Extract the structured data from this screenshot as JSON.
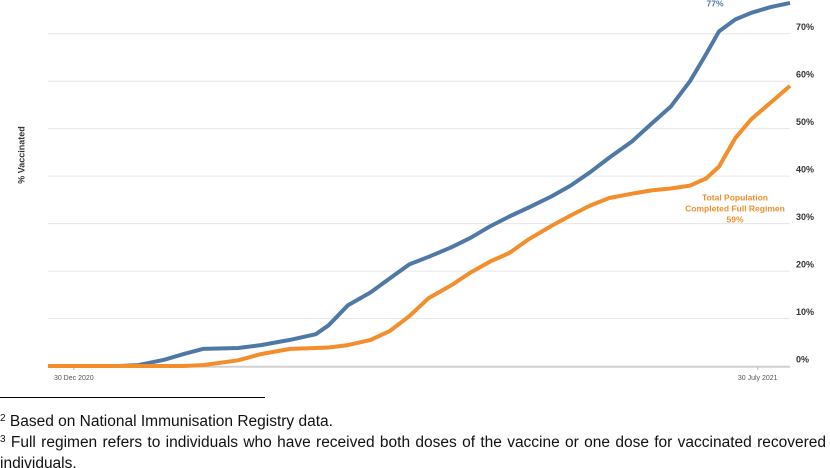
{
  "chart_data": {
    "type": "line",
    "y_label": "% Vaccinated",
    "x": [
      -8,
      14,
      20,
      28,
      34,
      40,
      51,
      58,
      67,
      75,
      79,
      85,
      92,
      98,
      104,
      110,
      117,
      123,
      129,
      135,
      141,
      148,
      154,
      160,
      166,
      173,
      179,
      185,
      191,
      196,
      200,
      205,
      210,
      216,
      222
    ],
    "xlim": [
      -8,
      222
    ],
    "xticks": [
      {
        "value": 0,
        "label": "30 Dec 2020"
      },
      {
        "value": 212,
        "label": "30 July 2021"
      }
    ],
    "ylim": [
      0,
      77
    ],
    "yticks": [
      {
        "value": 0,
        "label": "0%"
      },
      {
        "value": 10,
        "label": "10%"
      },
      {
        "value": 20,
        "label": "20%"
      },
      {
        "value": 30,
        "label": "30%"
      },
      {
        "value": 40,
        "label": "40%"
      },
      {
        "value": 50,
        "label": "50%"
      },
      {
        "value": 60,
        "label": "60%"
      },
      {
        "value": 70,
        "label": "70%"
      }
    ],
    "grid": true,
    "series": [
      {
        "color": "#4e79a7",
        "values": [
          0,
          0,
          0.2,
          1.3,
          2.5,
          3.6,
          3.8,
          4.4,
          5.5,
          6.7,
          8.6,
          12.8,
          15.5,
          18.5,
          21.4,
          23,
          25,
          27,
          29.4,
          31.5,
          33.4,
          35.7,
          38,
          40.8,
          43.9,
          47.3,
          51,
          54.6,
          60,
          65.7,
          70.5,
          73,
          74.4,
          75.6,
          76.5
        ]
      },
      {
        "color": "#f28e2b",
        "values": [
          0,
          0,
          0,
          0,
          0,
          0.2,
          1.2,
          2.5,
          3.6,
          3.8,
          3.9,
          4.4,
          5.5,
          7.4,
          10.5,
          14.3,
          17,
          19.7,
          22,
          23.8,
          26.7,
          29.5,
          31.7,
          33.8,
          35.4,
          36.3,
          37,
          37.4,
          38,
          39.5,
          42,
          48,
          52,
          55.5,
          59
        ]
      }
    ],
    "annotations": [
      {
        "lines": [
          "77%"
        ],
        "color": "#4e79a7"
      },
      {
        "lines": [
          "Total Population",
          "Completed Full Regimen",
          "59%"
        ],
        "color": "#f28e2b"
      }
    ]
  },
  "footnotes": [
    {
      "marker": "2",
      "text": "Based on National Immunisation Registry data."
    },
    {
      "marker": "3",
      "text": "Full regimen refers to individuals who have received both doses of the vaccine or one dose for vaccinated recovered individuals."
    }
  ]
}
